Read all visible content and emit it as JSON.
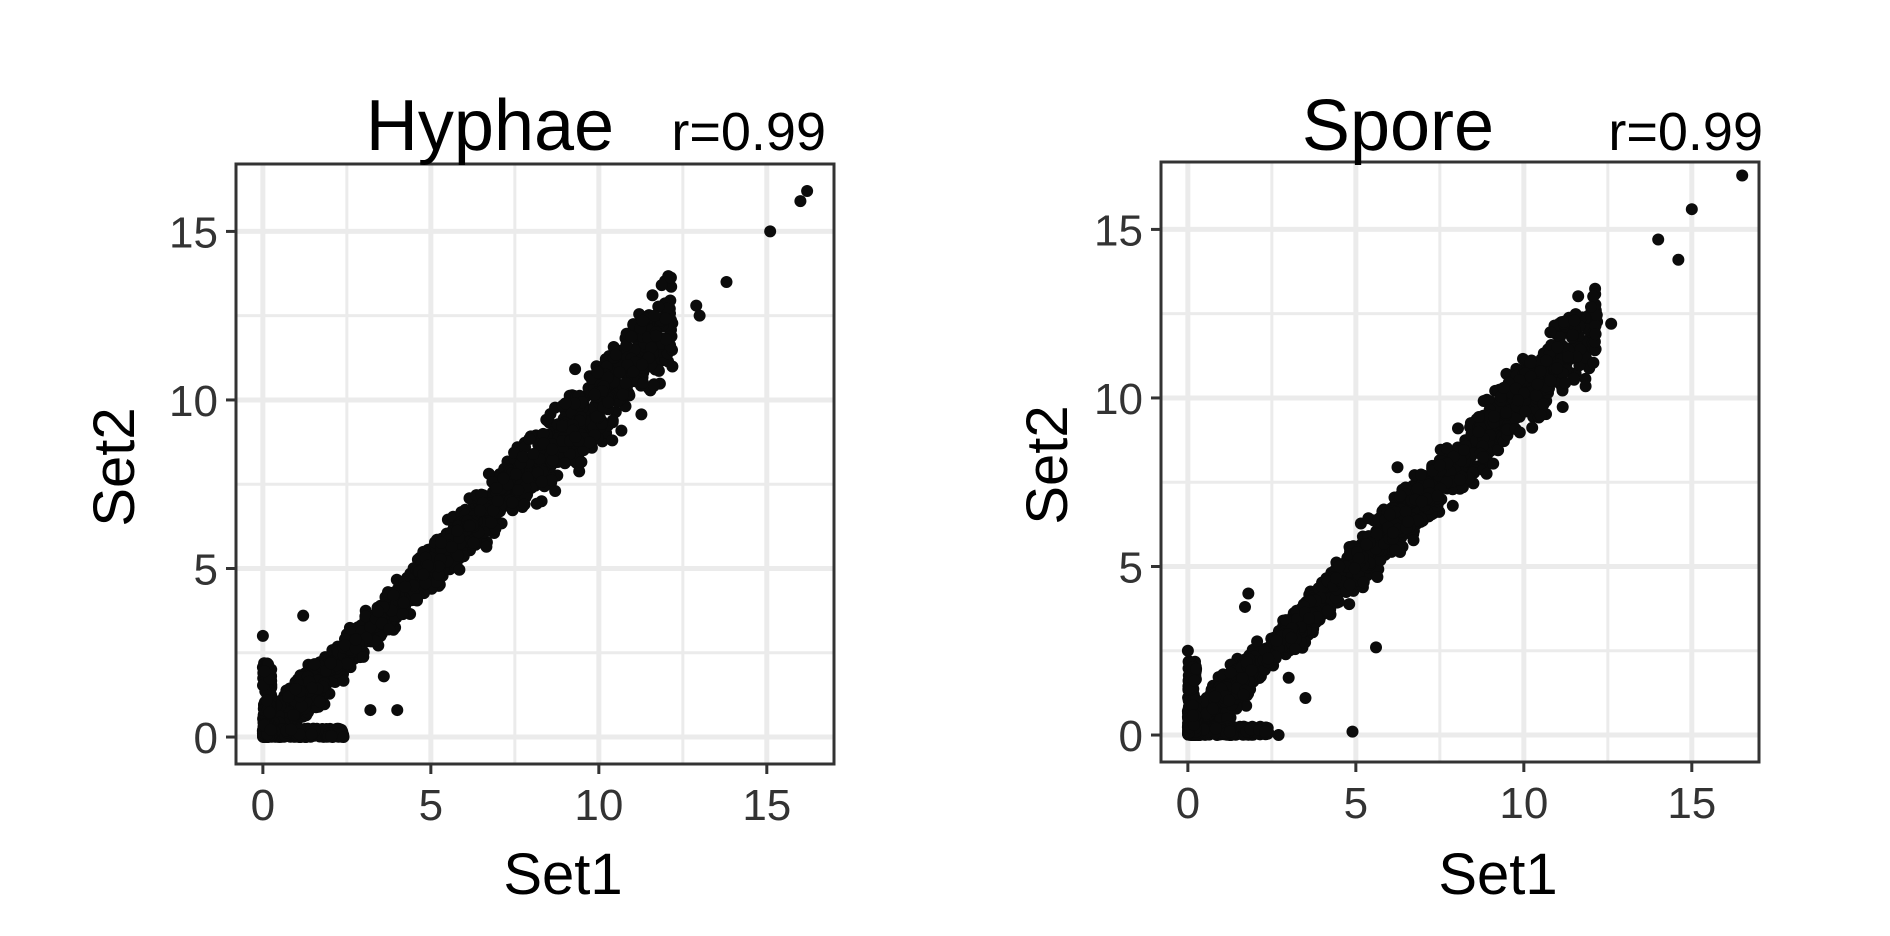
{
  "chart_data": [
    {
      "type": "scatter",
      "title": "Hyphae",
      "annotation": "r=0.99",
      "xlabel": "Set1",
      "ylabel": "Set2",
      "xlim": [
        -0.8,
        17.0
      ],
      "ylim": [
        -0.8,
        17.0
      ],
      "xticks": [
        0,
        5,
        10,
        15
      ],
      "yticks": [
        0,
        5,
        10,
        15
      ],
      "grid": true,
      "outliers": [
        {
          "x": 16.2,
          "y": 16.2
        },
        {
          "x": 16.0,
          "y": 15.9
        },
        {
          "x": 15.1,
          "y": 15.0
        },
        {
          "x": 13.8,
          "y": 13.5
        },
        {
          "x": 12.9,
          "y": 12.8
        },
        {
          "x": 13.0,
          "y": 12.5
        },
        {
          "x": 12.0,
          "y": 11.8
        },
        {
          "x": 11.7,
          "y": 11.9
        },
        {
          "x": 10.8,
          "y": 10.5
        },
        {
          "x": 10.4,
          "y": 8.8
        },
        {
          "x": 9.3,
          "y": 8.9
        },
        {
          "x": 8.7,
          "y": 7.3
        },
        {
          "x": 4.0,
          "y": 0.8
        },
        {
          "x": 3.2,
          "y": 0.8
        },
        {
          "x": 2.4,
          "y": 0.0
        },
        {
          "x": 1.2,
          "y": 3.6
        },
        {
          "x": 0.0,
          "y": 3.0
        },
        {
          "x": 3.6,
          "y": 1.8
        }
      ]
    },
    {
      "type": "scatter",
      "title": "Spore",
      "annotation": "r=0.99",
      "xlabel": "Set1",
      "ylabel": "Set2",
      "xlim": [
        -0.8,
        17.0
      ],
      "ylim": [
        -0.8,
        17.0
      ],
      "xticks": [
        0,
        5,
        10,
        15
      ],
      "yticks": [
        0,
        5,
        10,
        15
      ],
      "grid": true,
      "outliers": [
        {
          "x": 16.5,
          "y": 16.6
        },
        {
          "x": 15.0,
          "y": 15.6
        },
        {
          "x": 14.0,
          "y": 14.7
        },
        {
          "x": 14.6,
          "y": 14.1
        },
        {
          "x": 12.6,
          "y": 12.2
        },
        {
          "x": 12.0,
          "y": 12.7
        },
        {
          "x": 11.5,
          "y": 12.3
        },
        {
          "x": 11.0,
          "y": 11.5
        },
        {
          "x": 9.4,
          "y": 10.3
        },
        {
          "x": 5.6,
          "y": 2.6
        },
        {
          "x": 4.9,
          "y": 0.1
        },
        {
          "x": 1.7,
          "y": 3.8
        },
        {
          "x": 1.8,
          "y": 4.2
        },
        {
          "x": 2.7,
          "y": 0.0
        },
        {
          "x": 2.3,
          "y": 0.1
        },
        {
          "x": 3.5,
          "y": 1.1
        },
        {
          "x": 0.0,
          "y": 2.5
        },
        {
          "x": 3.0,
          "y": 1.7
        }
      ]
    }
  ]
}
